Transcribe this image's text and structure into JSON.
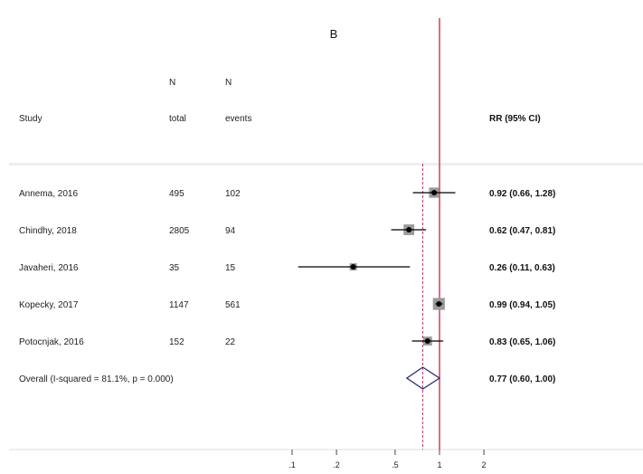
{
  "chart_data": {
    "type": "forest",
    "title": "B",
    "columns": {
      "study": "Study",
      "n_total": [
        "N",
        "total"
      ],
      "n_events": [
        "N",
        "events"
      ],
      "effect": "RR (95% CI)"
    },
    "x_scale": "log",
    "x_ticks": [
      ".1",
      ".2",
      ".5",
      "1",
      "2"
    ],
    "x_tick_values": [
      0.1,
      0.2,
      0.5,
      1,
      2
    ],
    "null_line": 1,
    "overall_line": 0.77,
    "studies": [
      {
        "label": "Annema, 2016",
        "total": "495",
        "events": "102",
        "rr": 0.92,
        "lo": 0.66,
        "hi": 1.28,
        "text": "0.92 (0.66, 1.28)",
        "weight": 0.22
      },
      {
        "label": "Chindhy, 2018",
        "total": "2805",
        "events": "94",
        "rr": 0.62,
        "lo": 0.47,
        "hi": 0.81,
        "text": "0.62 (0.47, 0.81)",
        "weight": 0.24
      },
      {
        "label": "Javaheri, 2016",
        "total": "35",
        "events": "15",
        "rr": 0.26,
        "lo": 0.11,
        "hi": 0.63,
        "text": "0.26 (0.11, 0.63)",
        "weight": 0.08
      },
      {
        "label": "Kopecky, 2017",
        "total": "1147",
        "events": "561",
        "rr": 0.99,
        "lo": 0.94,
        "hi": 1.05,
        "text": "0.99 (0.94, 1.05)",
        "weight": 0.3
      },
      {
        "label": "Potocnjak, 2016",
        "total": "152",
        "events": "22",
        "rr": 0.83,
        "lo": 0.65,
        "hi": 1.06,
        "text": "0.83 (0.65, 1.06)",
        "weight": 0.16
      }
    ],
    "overall": {
      "label": "Overall  (I-squared = 81.1%, p = 0.000)",
      "rr": 0.77,
      "lo": 0.6,
      "hi": 1.0,
      "text": "0.77 (0.60, 1.00)"
    },
    "colors": {
      "null_line": "#d21e3c",
      "overall_line": "#c03b73",
      "diamond": "#2a2a7a",
      "point": "#000000",
      "box": "#9a9a9a",
      "separator": "#eeeeee"
    }
  }
}
